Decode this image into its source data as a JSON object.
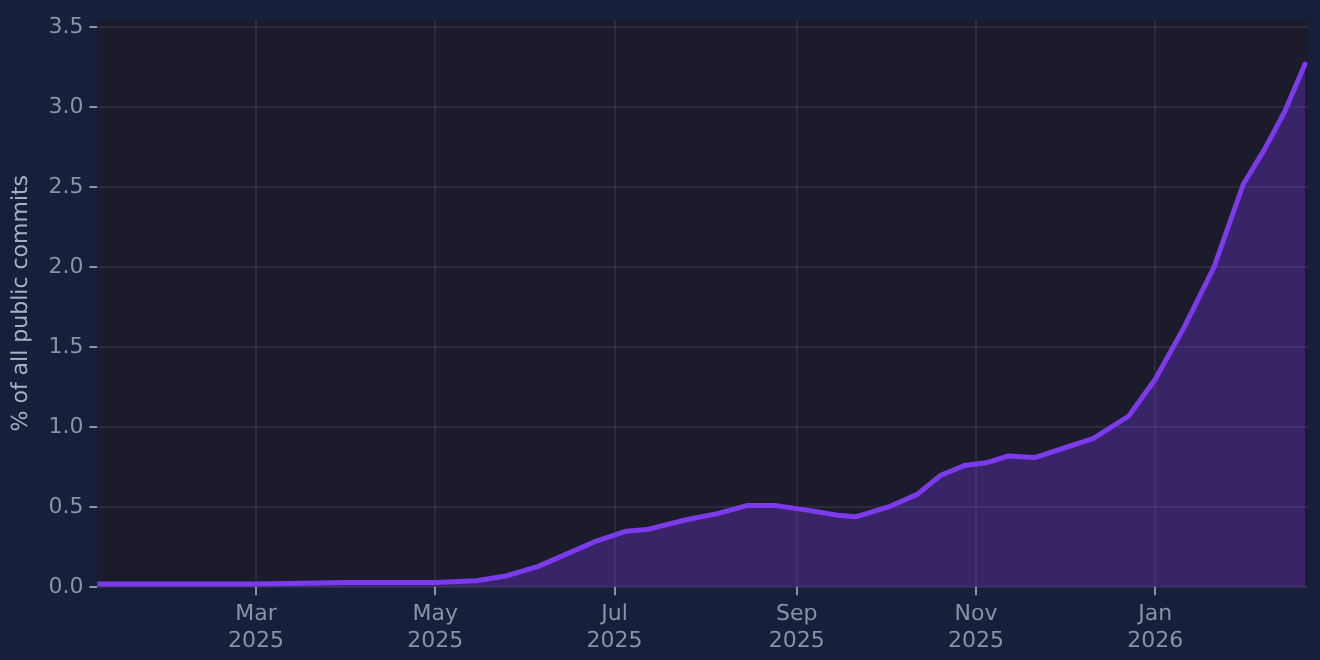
{
  "chart_data": {
    "type": "area",
    "ylabel": "% of all public commits",
    "x": [
      "2025-01-06",
      "2025-02-01",
      "2025-03-01",
      "2025-04-01",
      "2025-05-01",
      "2025-05-15",
      "2025-05-25",
      "2025-06-05",
      "2025-06-15",
      "2025-06-25",
      "2025-07-05",
      "2025-07-12",
      "2025-07-25",
      "2025-08-05",
      "2025-08-15",
      "2025-08-25",
      "2025-09-05",
      "2025-09-15",
      "2025-09-21",
      "2025-10-02",
      "2025-10-12",
      "2025-10-20",
      "2025-10-28",
      "2025-11-05",
      "2025-11-12",
      "2025-11-21",
      "2025-12-01",
      "2025-12-11",
      "2025-12-23",
      "2026-01-01",
      "2026-01-11",
      "2026-01-21",
      "2026-01-31",
      "2026-02-07",
      "2026-02-14",
      "2026-02-21"
    ],
    "series": [
      {
        "color": "#7c3aed",
        "values": [
          0.02,
          0.02,
          0.02,
          0.03,
          0.03,
          0.04,
          0.07,
          0.13,
          0.21,
          0.29,
          0.35,
          0.36,
          0.42,
          0.46,
          0.51,
          0.51,
          0.48,
          0.45,
          0.44,
          0.5,
          0.58,
          0.7,
          0.76,
          0.78,
          0.82,
          0.81,
          0.87,
          0.93,
          1.07,
          1.3,
          1.63,
          2.0,
          2.52,
          2.73,
          2.97,
          3.27
        ]
      }
    ],
    "xlim": [
      "2025-01-06",
      "2026-02-22"
    ],
    "xticks": [
      {
        "value": "2025-03-01",
        "label": "Mar\n2025"
      },
      {
        "value": "2025-05-01",
        "label": "May\n2025"
      },
      {
        "value": "2025-07-01",
        "label": "Jul\n2025"
      },
      {
        "value": "2025-09-01",
        "label": "Sep\n2025"
      },
      {
        "value": "2025-11-01",
        "label": "Nov\n2025"
      },
      {
        "value": "2026-01-01",
        "label": "Jan\n2026"
      }
    ],
    "ylim": [
      0,
      3.55
    ],
    "yticks": [
      {
        "value": 0,
        "label": "0.0"
      },
      {
        "value": 0.5,
        "label": "0.5"
      },
      {
        "value": 1,
        "label": "1.0"
      },
      {
        "value": 1.5,
        "label": "1.5"
      },
      {
        "value": 2,
        "label": "2.0"
      },
      {
        "value": 2.5,
        "label": "2.5"
      },
      {
        "value": 3,
        "label": "3.0"
      },
      {
        "value": 3.5,
        "label": "3.5"
      }
    ],
    "grid": true,
    "legend": false
  }
}
